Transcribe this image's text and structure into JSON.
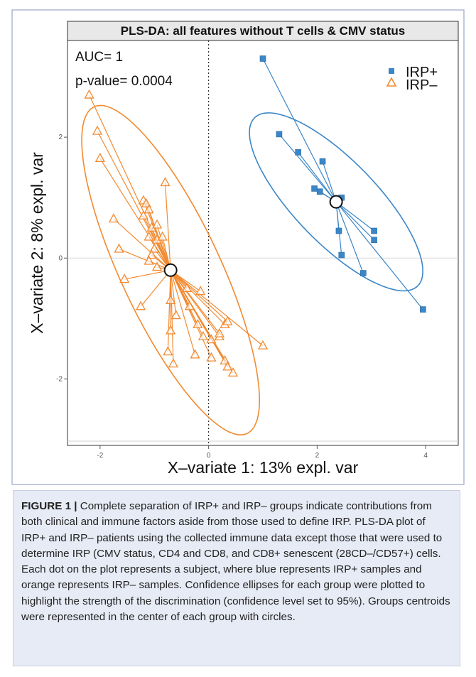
{
  "chart_data": {
    "type": "scatter",
    "title": "PLS-DA: all features without T cells & CMV status",
    "xlabel": "X–variate 1: 13% expl. var",
    "ylabel": "X–variate 2: 8% expl. var",
    "xlim": [
      -2.6,
      4.6
    ],
    "ylim": [
      -3.1,
      3.6
    ],
    "x_ticks": [
      -2,
      0,
      2,
      4
    ],
    "y_ticks": [
      -2,
      0,
      2
    ],
    "grid": false,
    "reference_lines": {
      "x": 0,
      "y": 0
    },
    "annotations": [
      "AUC= 1",
      "p-value= 0.0004"
    ],
    "legend": {
      "placement": "top-right",
      "entries": [
        "IRP+",
        "IRP–"
      ]
    },
    "colors": {
      "irp_pos": "#3a86c8",
      "irp_neg": "#f28a30"
    },
    "series": [
      {
        "name": "IRP+",
        "marker": "square",
        "centroid": [
          2.35,
          0.93
        ],
        "ellipse": {
          "center": [
            2.35,
            0.93
          ],
          "rx": 2.05,
          "ry": 0.72,
          "angle_deg": -42
        },
        "points": [
          [
            1.0,
            3.3
          ],
          [
            1.3,
            2.05
          ],
          [
            1.65,
            1.75
          ],
          [
            2.1,
            1.6
          ],
          [
            1.95,
            1.15
          ],
          [
            2.05,
            1.1
          ],
          [
            2.45,
            1.0
          ],
          [
            2.4,
            0.45
          ],
          [
            2.45,
            0.05
          ],
          [
            3.05,
            0.45
          ],
          [
            3.05,
            0.3
          ],
          [
            2.85,
            -0.25
          ],
          [
            3.95,
            -0.85
          ]
        ]
      },
      {
        "name": "IRP–",
        "marker": "triangle",
        "centroid": [
          -0.7,
          -0.2
        ],
        "ellipse": {
          "center": [
            -0.7,
            -0.2
          ],
          "rx": 3.05,
          "ry": 0.9,
          "angle_deg": -62
        },
        "points": [
          [
            -2.2,
            2.7
          ],
          [
            -2.05,
            2.1
          ],
          [
            -2.0,
            1.65
          ],
          [
            -1.75,
            0.65
          ],
          [
            -1.65,
            0.15
          ],
          [
            -0.8,
            1.25
          ],
          [
            -1.2,
            0.95
          ],
          [
            -1.15,
            0.9
          ],
          [
            -1.1,
            0.8
          ],
          [
            -1.2,
            0.7
          ],
          [
            -1.05,
            0.5
          ],
          [
            -0.95,
            0.55
          ],
          [
            -1.1,
            0.35
          ],
          [
            -0.95,
            0.3
          ],
          [
            -0.85,
            0.35
          ],
          [
            -1.0,
            0.15
          ],
          [
            -1.05,
            0.05
          ],
          [
            -1.1,
            -0.05
          ],
          [
            -0.95,
            -0.15
          ],
          [
            -1.55,
            -0.35
          ],
          [
            -1.25,
            -0.8
          ],
          [
            -0.7,
            -0.7
          ],
          [
            -0.7,
            -1.2
          ],
          [
            -0.75,
            -1.55
          ],
          [
            -0.65,
            -1.75
          ],
          [
            -0.6,
            -0.95
          ],
          [
            -0.4,
            -0.5
          ],
          [
            -0.35,
            -0.8
          ],
          [
            -0.2,
            -1.1
          ],
          [
            -0.15,
            -0.55
          ],
          [
            -0.1,
            -1.3
          ],
          [
            0.05,
            -1.35
          ],
          [
            0.2,
            -1.3
          ],
          [
            0.2,
            -1.25
          ],
          [
            0.3,
            -1.1
          ],
          [
            0.35,
            -1.05
          ],
          [
            0.3,
            -1.7
          ],
          [
            0.35,
            -1.8
          ],
          [
            0.45,
            -1.9
          ],
          [
            0.05,
            -1.65
          ],
          [
            -0.25,
            -1.6
          ],
          [
            1.0,
            -1.45
          ]
        ]
      }
    ]
  },
  "caption": {
    "label": "FIGURE 1 |",
    "text": " Complete separation of IRP+ and IRP– groups indicate contributions from both clinical and immune factors aside from those used to define IRP. PLS-DA plot of IRP+ and IRP– patients using the collected immune data except those that were used to determine IRP (CMV status, CD4 and CD8, and CD8+ senescent (28CD–/CD57+) cells. Each dot on the plot represents a subject, where blue represents IRP+ samples and orange represents IRP– samples. Confidence ellipses for each group were plotted to highlight the strength of the discrimination (confidence level set to 95%). Groups centroids were represented in the center of each group with circles."
  }
}
